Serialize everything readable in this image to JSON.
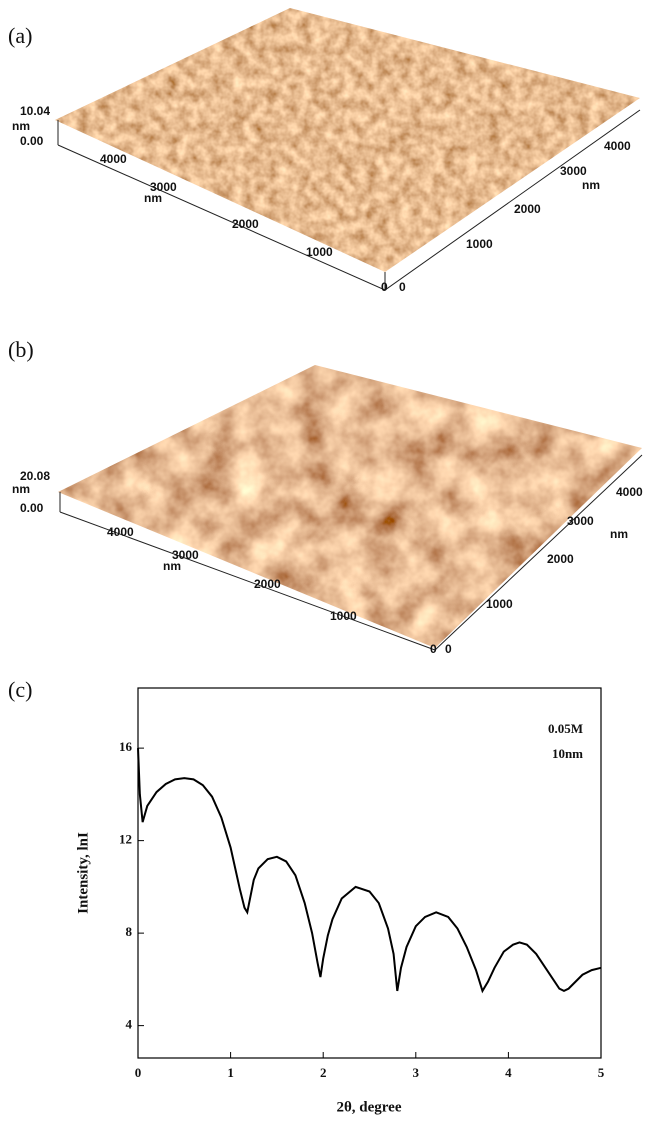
{
  "afm_panels": [
    {
      "label": "(a)",
      "labels": [
        "10.04",
        "nm",
        "0.00",
        "4000",
        "3000",
        "nm",
        "2000",
        "1000",
        "0",
        "0",
        "1000",
        "2000",
        "3000",
        "nm",
        "4000"
      ]
    },
    {
      "label": "(b)",
      "labels": [
        "20.08",
        "nm",
        "0.00",
        "4000",
        "3000",
        "nm",
        "2000",
        "1000",
        "0",
        "0",
        "1000",
        "2000",
        "3000",
        "nm",
        "4000"
      ]
    }
  ],
  "chart_data": {
    "type": "line",
    "panel_label": "(c)",
    "xlabel": "2θ, degree",
    "ylabel": "Intensity, lnI",
    "annotations": [
      "0.05M",
      "10nm"
    ],
    "x": [
      0,
      0.02,
      0.05,
      0.1,
      0.2,
      0.3,
      0.4,
      0.5,
      0.6,
      0.7,
      0.8,
      0.9,
      1.0,
      1.05,
      1.1,
      1.15,
      1.18,
      1.21,
      1.25,
      1.3,
      1.4,
      1.5,
      1.6,
      1.7,
      1.8,
      1.88,
      1.94,
      1.97,
      2.0,
      2.05,
      2.1,
      2.2,
      2.35,
      2.5,
      2.6,
      2.7,
      2.76,
      2.8,
      2.84,
      2.9,
      3.0,
      3.1,
      3.22,
      3.35,
      3.45,
      3.55,
      3.65,
      3.72,
      3.78,
      3.85,
      3.95,
      4.05,
      4.12,
      4.2,
      4.3,
      4.4,
      4.5,
      4.55,
      4.6,
      4.65,
      4.7,
      4.8,
      4.9,
      5.0
    ],
    "series": [
      {
        "color": "#000000",
        "values": [
          16.0,
          14.0,
          12.8,
          13.5,
          14.1,
          14.45,
          14.65,
          14.7,
          14.65,
          14.4,
          13.9,
          13.0,
          11.7,
          10.8,
          9.9,
          9.1,
          8.9,
          9.5,
          10.3,
          10.8,
          11.2,
          11.3,
          11.1,
          10.5,
          9.3,
          8.0,
          6.7,
          6.1,
          6.9,
          7.9,
          8.6,
          9.5,
          10.0,
          9.8,
          9.3,
          8.2,
          7.1,
          5.5,
          6.5,
          7.4,
          8.3,
          8.7,
          8.9,
          8.7,
          8.2,
          7.4,
          6.4,
          5.5,
          5.9,
          6.5,
          7.2,
          7.5,
          7.6,
          7.5,
          7.1,
          6.5,
          5.9,
          5.6,
          5.5,
          5.6,
          5.8,
          6.2,
          6.4,
          6.5
        ]
      }
    ],
    "xlim": [
      0,
      5
    ],
    "ylim": [
      2.6,
      18.6
    ],
    "xticks": [
      0,
      1,
      2,
      3,
      4,
      5
    ],
    "yticks": [
      4,
      8,
      12,
      16
    ]
  }
}
